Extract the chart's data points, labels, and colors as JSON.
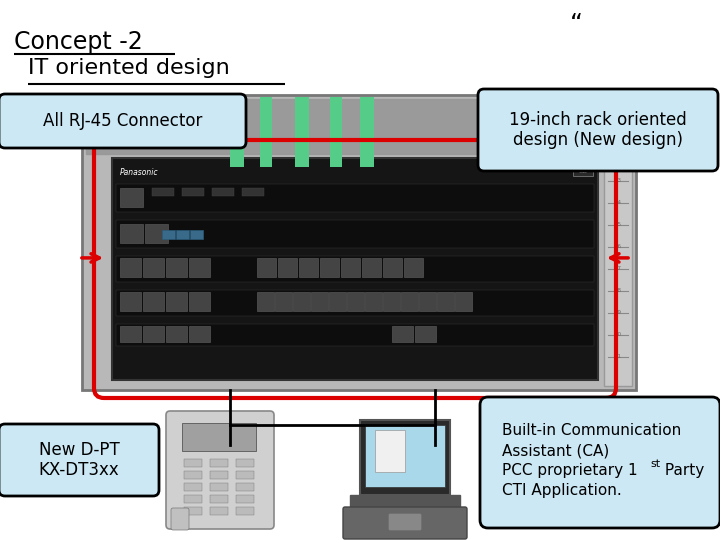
{
  "background_color": "#ffffff",
  "title_line1": "Concept -2",
  "title_line2": "IT oriented design",
  "quote_mark": "“",
  "label_rj45": "All RJ-45 Connector",
  "label_rack": "19-inch rack oriented\ndesign (New design)",
  "label_dpt": "New D-PT\nKX-DT3xx",
  "callout_bg": "#cce8f4",
  "callout_border": "#000000",
  "rack_bg": "#aaaaaa",
  "rack_border": "#888888",
  "inner_bg": "#888888",
  "pbx_bg": "#1a1a1a",
  "pbx_border": "#555555",
  "red_color": "#dd0000",
  "port_color": "#555555",
  "port_border": "#333333",
  "green_cable": "#55cc88",
  "figure_width": 7.2,
  "figure_height": 5.4
}
